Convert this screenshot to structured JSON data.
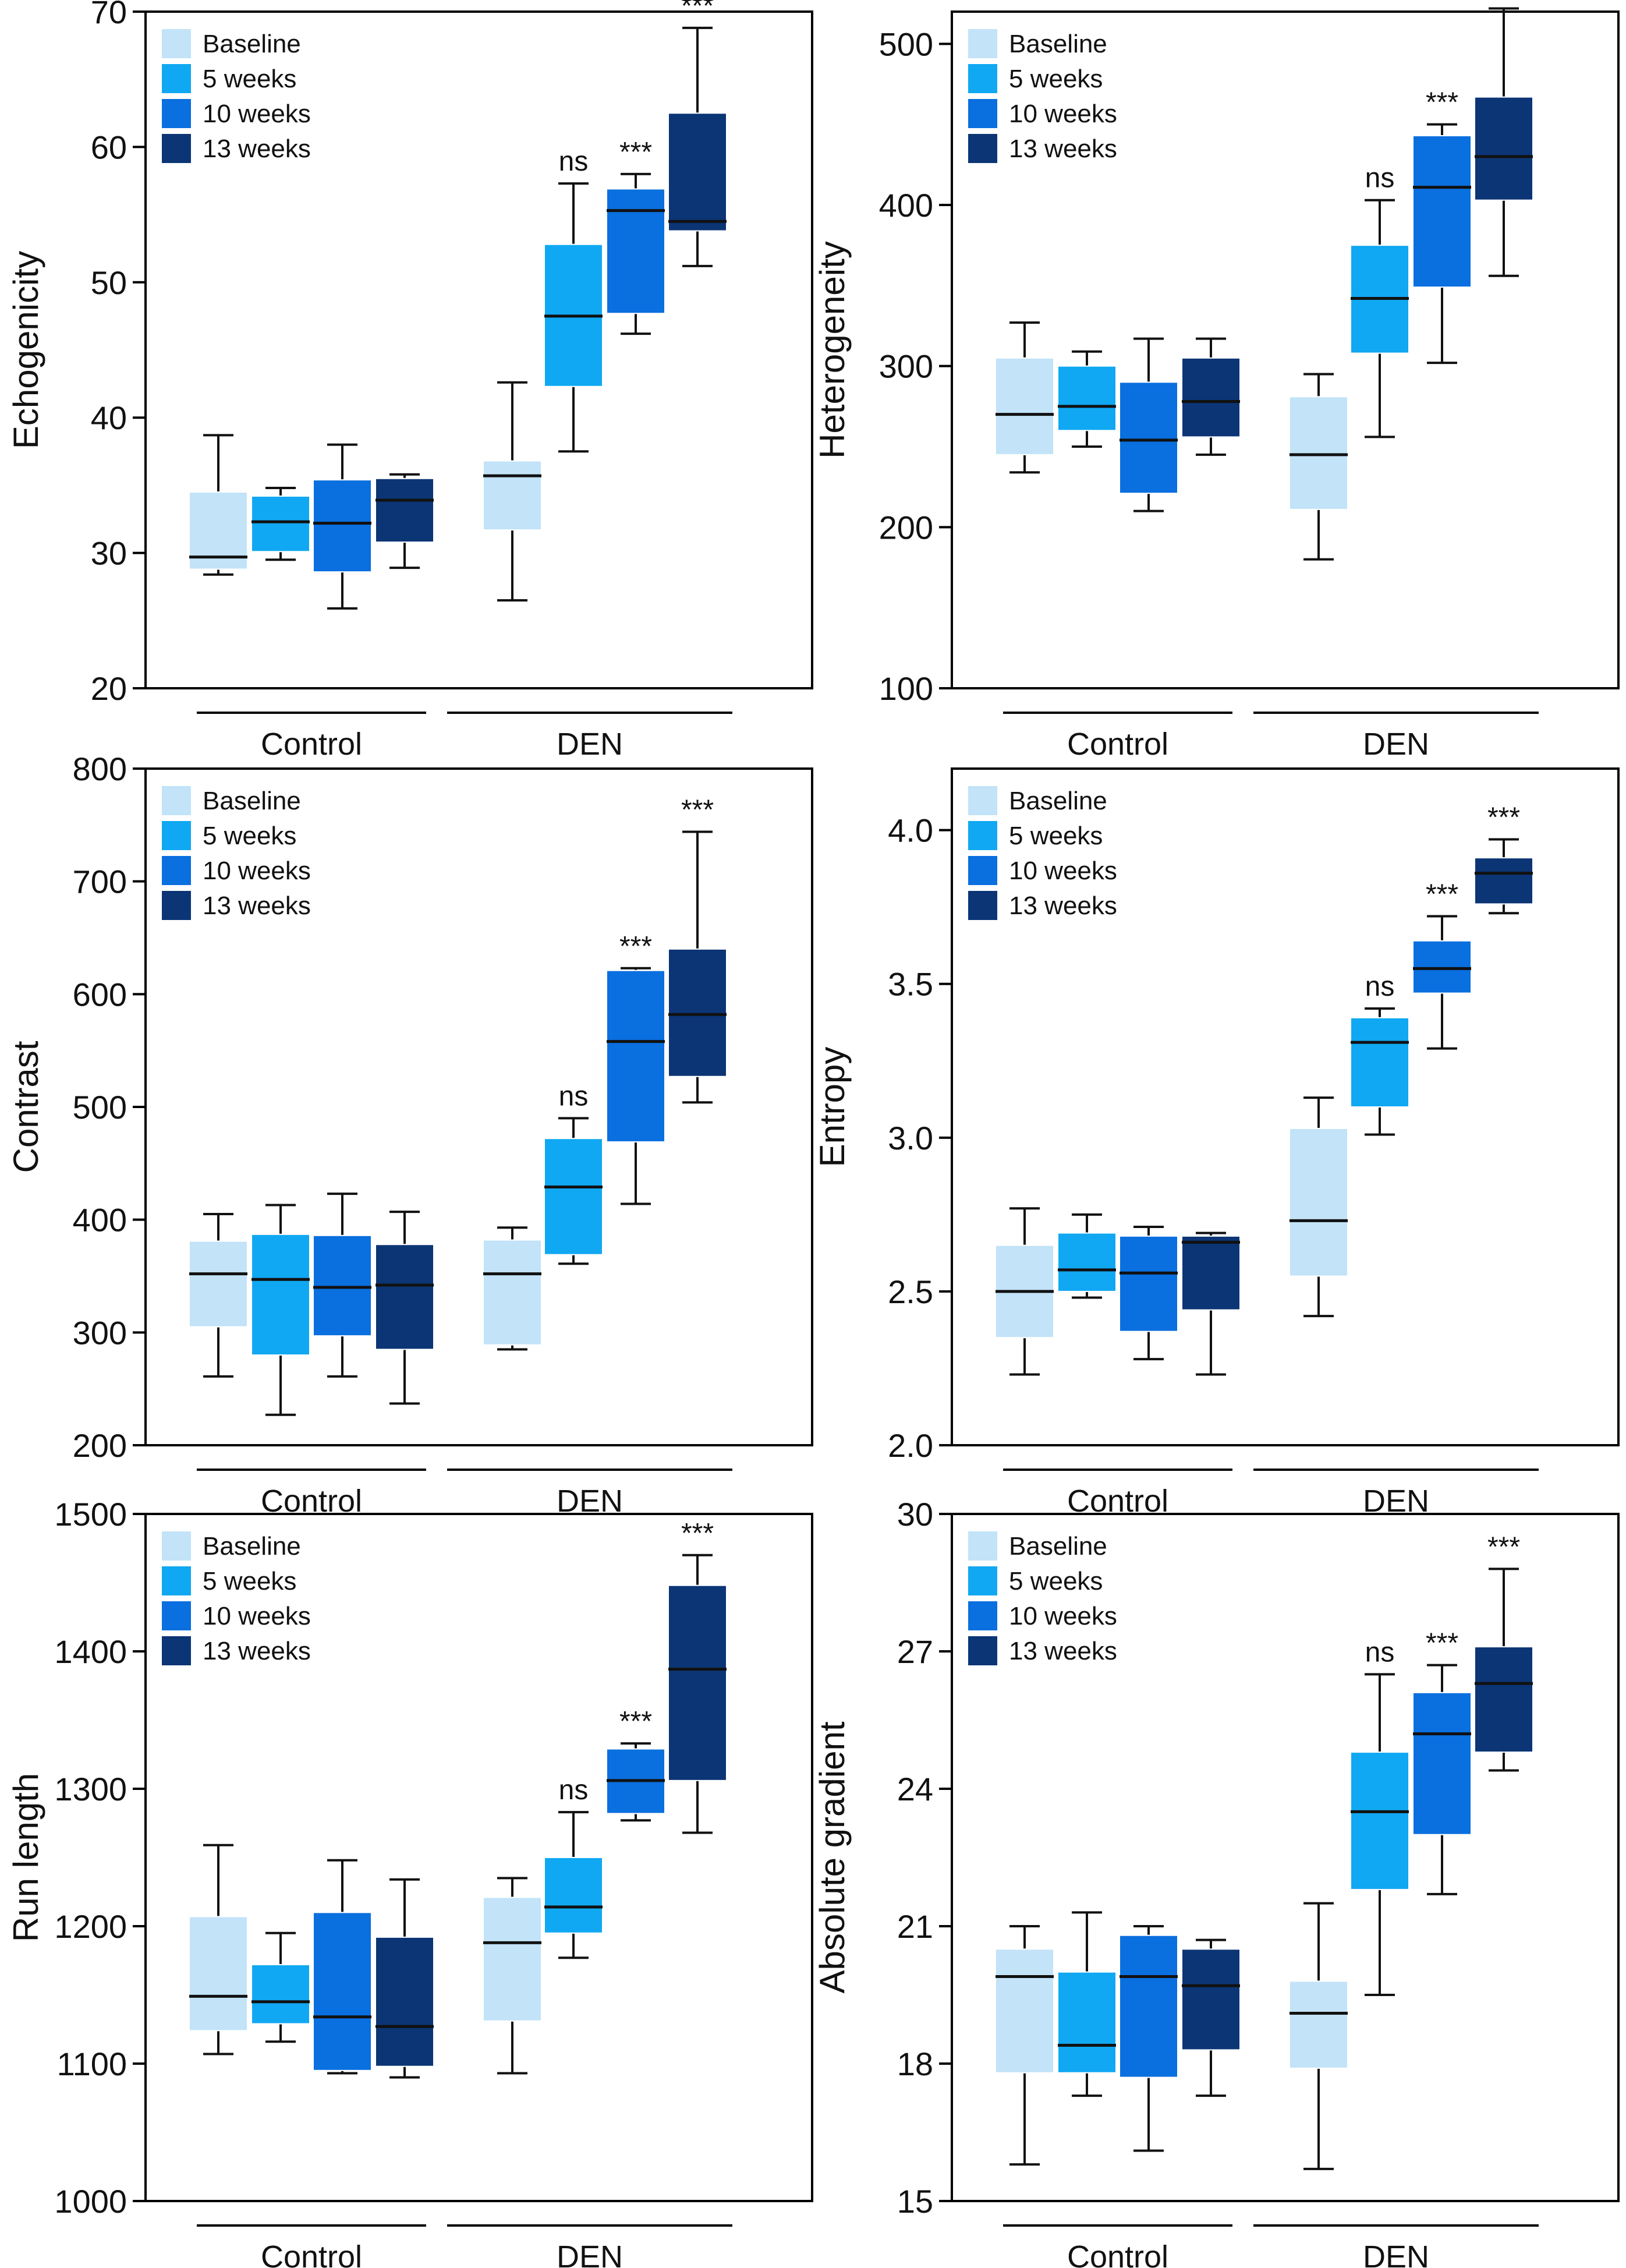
{
  "figure": {
    "legend": [
      "Baseline",
      "5 weeks",
      "10 weeks",
      "13 weeks"
    ],
    "groups": [
      "Control",
      "DEN"
    ],
    "colors": [
      "#c2e3f8",
      "#10a8f2",
      "#0a6fdf",
      "#0b3575"
    ]
  },
  "chart_data": [
    {
      "type": "box",
      "title": "",
      "ylabel": "Echogenicity",
      "ylim": [
        20,
        70
      ],
      "yticks": [
        20,
        30,
        40,
        50,
        60,
        70
      ],
      "groups": [
        "Control",
        "DEN"
      ],
      "series": [
        {
          "name": "Baseline",
          "boxes": [
            {
              "group": "Control",
              "min": 28.4,
              "q1": 28.8,
              "median": 29.7,
              "q3": 34.5,
              "max": 38.7,
              "label": ""
            },
            {
              "group": "DEN",
              "min": 26.5,
              "q1": 31.7,
              "median": 35.7,
              "q3": 36.8,
              "max": 42.6,
              "label": ""
            }
          ]
        },
        {
          "name": "5 weeks",
          "boxes": [
            {
              "group": "Control",
              "min": 29.5,
              "q1": 30.1,
              "median": 32.3,
              "q3": 34.2,
              "max": 34.8,
              "label": ""
            },
            {
              "group": "DEN",
              "min": 37.5,
              "q1": 42.3,
              "median": 47.5,
              "q3": 52.8,
              "max": 57.3,
              "label": "ns"
            }
          ]
        },
        {
          "name": "10 weeks",
          "boxes": [
            {
              "group": "Control",
              "min": 25.9,
              "q1": 28.6,
              "median": 32.2,
              "q3": 35.4,
              "max": 38.0,
              "label": ""
            },
            {
              "group": "DEN",
              "min": 46.2,
              "q1": 47.7,
              "median": 55.3,
              "q3": 56.9,
              "max": 58.0,
              "label": "***"
            }
          ]
        },
        {
          "name": "13 weeks",
          "boxes": [
            {
              "group": "Control",
              "min": 28.9,
              "q1": 30.8,
              "median": 33.9,
              "q3": 35.5,
              "max": 35.8,
              "label": ""
            },
            {
              "group": "DEN",
              "min": 51.2,
              "q1": 53.8,
              "median": 54.5,
              "q3": 62.5,
              "max": 68.8,
              "label": "***"
            }
          ]
        }
      ]
    },
    {
      "type": "box",
      "title": "",
      "ylabel": "Heterogeneity",
      "ylim": [
        100,
        520
      ],
      "yticks": [
        100,
        200,
        300,
        400,
        500
      ],
      "groups": [
        "Control",
        "DEN"
      ],
      "series": [
        {
          "name": "Baseline",
          "boxes": [
            {
              "group": "Control",
              "min": 234,
              "q1": 245,
              "median": 270,
              "q3": 305,
              "max": 327,
              "label": ""
            },
            {
              "group": "DEN",
              "min": 180,
              "q1": 211,
              "median": 245,
              "q3": 281,
              "max": 295,
              "label": ""
            }
          ]
        },
        {
          "name": "5 weeks",
          "boxes": [
            {
              "group": "Control",
              "min": 250,
              "q1": 260,
              "median": 275,
              "q3": 300,
              "max": 309,
              "label": ""
            },
            {
              "group": "DEN",
              "min": 256,
              "q1": 308,
              "median": 342,
              "q3": 375,
              "max": 403,
              "label": "ns"
            }
          ]
        },
        {
          "name": "10 weeks",
          "boxes": [
            {
              "group": "Control",
              "min": 210,
              "q1": 221,
              "median": 254,
              "q3": 290,
              "max": 317,
              "label": ""
            },
            {
              "group": "DEN",
              "min": 302,
              "q1": 349,
              "median": 411,
              "q3": 443,
              "max": 450,
              "label": "***"
            }
          ]
        },
        {
          "name": "13 weeks",
          "boxes": [
            {
              "group": "Control",
              "min": 245,
              "q1": 256,
              "median": 278,
              "q3": 305,
              "max": 317,
              "label": ""
            },
            {
              "group": "DEN",
              "min": 356,
              "q1": 403,
              "median": 430,
              "q3": 467,
              "max": 522,
              "label": "***"
            }
          ]
        }
      ]
    },
    {
      "type": "box",
      "title": "",
      "ylabel": "Contrast",
      "ylim": [
        200,
        800
      ],
      "yticks": [
        200,
        300,
        400,
        500,
        600,
        700,
        800
      ],
      "groups": [
        "Control",
        "DEN"
      ],
      "series": [
        {
          "name": "Baseline",
          "boxes": [
            {
              "group": "Control",
              "min": 261,
              "q1": 305,
              "median": 352,
              "q3": 381,
              "max": 405,
              "label": ""
            },
            {
              "group": "DEN",
              "min": 285,
              "q1": 289,
              "median": 352,
              "q3": 382,
              "max": 393,
              "label": ""
            }
          ]
        },
        {
          "name": "5 weeks",
          "boxes": [
            {
              "group": "Control",
              "min": 227,
              "q1": 280,
              "median": 347,
              "q3": 387,
              "max": 413,
              "label": ""
            },
            {
              "group": "DEN",
              "min": 361,
              "q1": 369,
              "median": 429,
              "q3": 472,
              "max": 490,
              "label": "ns"
            }
          ]
        },
        {
          "name": "10 weeks",
          "boxes": [
            {
              "group": "Control",
              "min": 261,
              "q1": 297,
              "median": 340,
              "q3": 386,
              "max": 423,
              "label": ""
            },
            {
              "group": "DEN",
              "min": 414,
              "q1": 469,
              "median": 558,
              "q3": 621,
              "max": 623,
              "label": "***"
            }
          ]
        },
        {
          "name": "13 weeks",
          "boxes": [
            {
              "group": "Control",
              "min": 237,
              "q1": 285,
              "median": 342,
              "q3": 378,
              "max": 407,
              "label": ""
            },
            {
              "group": "DEN",
              "min": 504,
              "q1": 527,
              "median": 582,
              "q3": 640,
              "max": 744,
              "label": "***"
            }
          ]
        }
      ]
    },
    {
      "type": "box",
      "title": "",
      "ylabel": "Entropy",
      "ylim": [
        2.0,
        4.2
      ],
      "yticks": [
        "2.0",
        "2.5",
        "3.0",
        "3.5",
        "4.0"
      ],
      "groups": [
        "Control",
        "DEN"
      ],
      "series": [
        {
          "name": "Baseline",
          "boxes": [
            {
              "group": "Control",
              "min": 2.23,
              "q1": 2.35,
              "median": 2.5,
              "q3": 2.65,
              "max": 2.77,
              "label": ""
            },
            {
              "group": "DEN",
              "min": 2.42,
              "q1": 2.55,
              "median": 2.73,
              "q3": 3.03,
              "max": 3.13,
              "label": ""
            }
          ]
        },
        {
          "name": "5 weeks",
          "boxes": [
            {
              "group": "Control",
              "min": 2.48,
              "q1": 2.5,
              "median": 2.57,
              "q3": 2.69,
              "max": 2.75,
              "label": ""
            },
            {
              "group": "DEN",
              "min": 3.01,
              "q1": 3.1,
              "median": 3.31,
              "q3": 3.39,
              "max": 3.42,
              "label": "ns"
            }
          ]
        },
        {
          "name": "10 weeks",
          "boxes": [
            {
              "group": "Control",
              "min": 2.28,
              "q1": 2.37,
              "median": 2.56,
              "q3": 2.68,
              "max": 2.71,
              "label": ""
            },
            {
              "group": "DEN",
              "min": 3.29,
              "q1": 3.47,
              "median": 3.55,
              "q3": 3.64,
              "max": 3.72,
              "label": "***"
            }
          ]
        },
        {
          "name": "13 weeks",
          "boxes": [
            {
              "group": "Control",
              "min": 2.23,
              "q1": 2.44,
              "median": 2.66,
              "q3": 2.68,
              "max": 2.69,
              "label": ""
            },
            {
              "group": "DEN",
              "min": 3.73,
              "q1": 3.76,
              "median": 3.86,
              "q3": 3.91,
              "max": 3.97,
              "label": "***"
            }
          ]
        }
      ]
    },
    {
      "type": "box",
      "title": "",
      "ylabel": "Run length",
      "ylim": [
        1000,
        1500
      ],
      "yticks": [
        1000,
        1100,
        1200,
        1300,
        1400,
        1500
      ],
      "groups": [
        "Control",
        "DEN"
      ],
      "series": [
        {
          "name": "Baseline",
          "boxes": [
            {
              "group": "Control",
              "min": 1107,
              "q1": 1124,
              "median": 1149,
              "q3": 1207,
              "max": 1259,
              "label": ""
            },
            {
              "group": "DEN",
              "min": 1093,
              "q1": 1131,
              "median": 1188,
              "q3": 1221,
              "max": 1235,
              "label": ""
            }
          ]
        },
        {
          "name": "5 weeks",
          "boxes": [
            {
              "group": "Control",
              "min": 1116,
              "q1": 1129,
              "median": 1145,
              "q3": 1172,
              "max": 1195,
              "label": ""
            },
            {
              "group": "DEN",
              "min": 1177,
              "q1": 1195,
              "median": 1214,
              "q3": 1250,
              "max": 1283,
              "label": "ns"
            }
          ]
        },
        {
          "name": "10 weeks",
          "boxes": [
            {
              "group": "Control",
              "min": 1093,
              "q1": 1095,
              "median": 1134,
              "q3": 1210,
              "max": 1248,
              "label": ""
            },
            {
              "group": "DEN",
              "min": 1277,
              "q1": 1282,
              "median": 1306,
              "q3": 1329,
              "max": 1333,
              "label": "***"
            }
          ]
        },
        {
          "name": "13 weeks",
          "boxes": [
            {
              "group": "Control",
              "min": 1090,
              "q1": 1098,
              "median": 1127,
              "q3": 1192,
              "max": 1234,
              "label": ""
            },
            {
              "group": "DEN",
              "min": 1268,
              "q1": 1306,
              "median": 1387,
              "q3": 1448,
              "max": 1470,
              "label": "***"
            }
          ]
        }
      ]
    },
    {
      "type": "box",
      "title": "",
      "ylabel": "Absolute gradient",
      "ylim": [
        15,
        30
      ],
      "yticks": [
        15,
        18,
        21,
        24,
        27,
        30
      ],
      "groups": [
        "Control",
        "DEN"
      ],
      "series": [
        {
          "name": "Baseline",
          "boxes": [
            {
              "group": "Control",
              "min": 15.8,
              "q1": 17.8,
              "median": 19.9,
              "q3": 20.5,
              "max": 21.0,
              "label": ""
            },
            {
              "group": "DEN",
              "min": 15.7,
              "q1": 17.9,
              "median": 19.1,
              "q3": 19.8,
              "max": 21.5,
              "label": ""
            }
          ]
        },
        {
          "name": "5 weeks",
          "boxes": [
            {
              "group": "Control",
              "min": 17.3,
              "q1": 17.8,
              "median": 18.4,
              "q3": 20.0,
              "max": 21.3,
              "label": ""
            },
            {
              "group": "DEN",
              "min": 19.5,
              "q1": 21.8,
              "median": 23.5,
              "q3": 24.8,
              "max": 26.5,
              "label": "ns"
            }
          ]
        },
        {
          "name": "10 weeks",
          "boxes": [
            {
              "group": "Control",
              "min": 16.1,
              "q1": 17.7,
              "median": 19.9,
              "q3": 20.8,
              "max": 21.0,
              "label": ""
            },
            {
              "group": "DEN",
              "min": 21.7,
              "q1": 23.0,
              "median": 25.2,
              "q3": 26.1,
              "max": 26.7,
              "label": "***"
            }
          ]
        },
        {
          "name": "13 weeks",
          "boxes": [
            {
              "group": "Control",
              "min": 17.3,
              "q1": 18.3,
              "median": 19.7,
              "q3": 20.5,
              "max": 20.7,
              "label": ""
            },
            {
              "group": "DEN",
              "min": 24.4,
              "q1": 24.8,
              "median": 26.3,
              "q3": 27.1,
              "max": 28.8,
              "label": "***"
            }
          ]
        }
      ]
    }
  ]
}
